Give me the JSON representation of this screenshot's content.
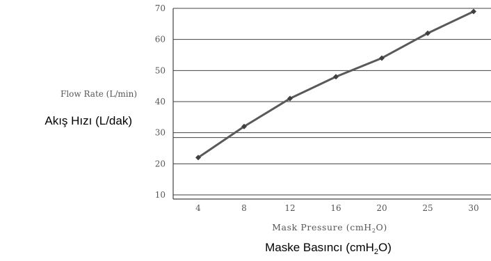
{
  "chart_data": {
    "type": "line",
    "categories": [
      "4",
      "8",
      "12",
      "16",
      "20",
      "25",
      "30"
    ],
    "series": [
      {
        "values": [
          22,
          32,
          41,
          48,
          54,
          62,
          69
        ]
      }
    ],
    "ylabel": "Flow Rate (L/min)",
    "ylabel_tr": "Akış Hızı (L/dak)",
    "xlabel_prefix": "Mask Pressure (cmH",
    "xlabel_sub": "2",
    "xlabel_suffix": "O)",
    "xlabel_tr_prefix": "Maske Basıncı (cmH",
    "xlabel_tr_sub": "2",
    "xlabel_tr_suffix": "O)",
    "yticks": [
      "10",
      "20",
      "30",
      "40",
      "50",
      "60",
      "70"
    ],
    "ylim": [
      10,
      70
    ],
    "grid": true,
    "line_color": "#595959",
    "grid_color": "#404040"
  }
}
